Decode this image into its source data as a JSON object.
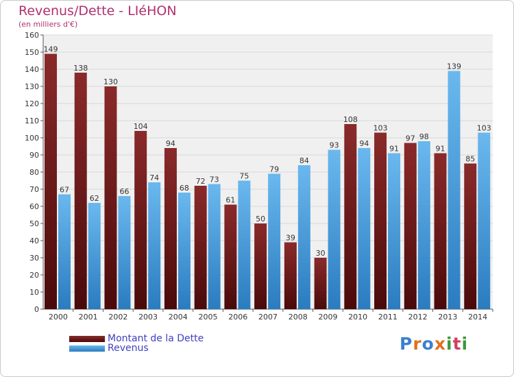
{
  "header": {
    "title": "Revenus/Dette - LIéHON",
    "subtitle": "(en milliers d'€)"
  },
  "brand": {
    "name": "Proxiti",
    "letter_colors": [
      "#3a7fd0",
      "#e07020",
      "#3a7fd0",
      "#e07020",
      "#3a9a3a",
      "#d04060",
      "#3a9a3a"
    ]
  },
  "colors": {
    "dette_light": "#8a2a2a",
    "dette_dark": "#4a0a0a",
    "revenus_light": "#6ab8ee",
    "revenus_dark": "#2a7cc0",
    "axis": "#555555",
    "grid": "#d8d8d8",
    "plot_bg": "#f0f0f0"
  },
  "chart_data": {
    "type": "bar",
    "categories": [
      "2000",
      "2001",
      "2002",
      "2003",
      "2004",
      "2005",
      "2006",
      "2007",
      "2008",
      "2009",
      "2010",
      "2011",
      "2012",
      "2013",
      "2014"
    ],
    "series": [
      {
        "name": "Montant de la Dette",
        "values": [
          149,
          138,
          130,
          104,
          94,
          72,
          61,
          50,
          39,
          30,
          108,
          103,
          97,
          91,
          85
        ]
      },
      {
        "name": "Revenus",
        "values": [
          67,
          62,
          66,
          74,
          68,
          73,
          75,
          79,
          84,
          93,
          94,
          91,
          98,
          139,
          103
        ]
      }
    ],
    "ylim": [
      0,
      160
    ],
    "yticks": [
      0,
      10,
      20,
      30,
      40,
      50,
      60,
      70,
      80,
      90,
      100,
      110,
      120,
      130,
      140,
      150,
      160
    ],
    "grid": true,
    "legend_position": "bottom-left"
  }
}
